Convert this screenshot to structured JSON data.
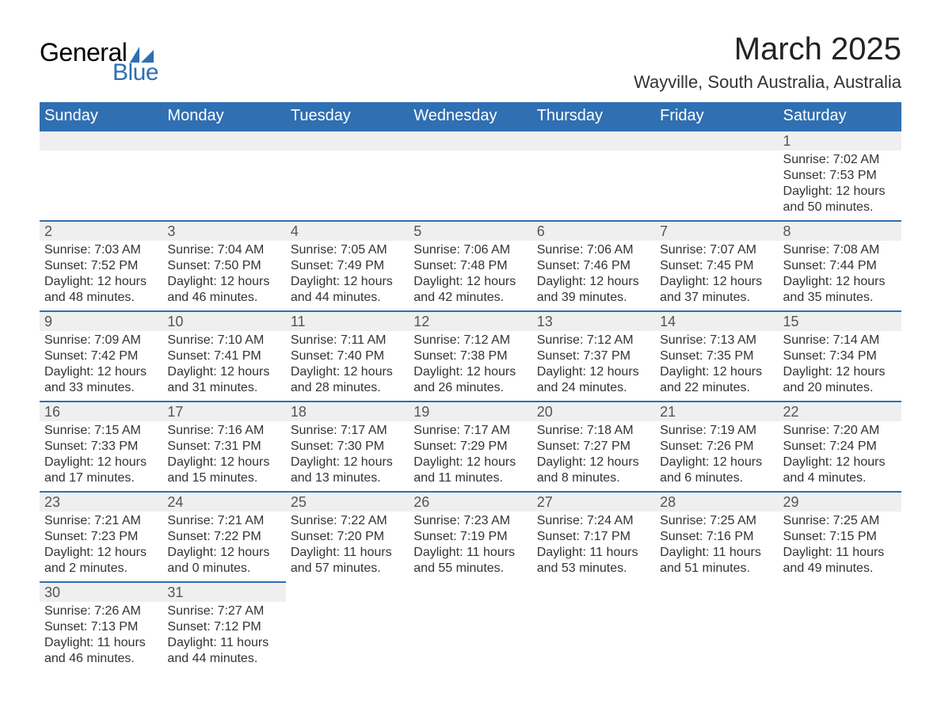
{
  "logo": {
    "text1": "General",
    "text2": "Blue",
    "sail_color": "#2f6fb2"
  },
  "title": "March 2025",
  "location": "Wayville, South Australia, Australia",
  "colors": {
    "header_bg": "#2f6fb2",
    "header_text": "#ffffff",
    "daynum_bg": "#efefef",
    "row_border": "#2f6fb2",
    "body_text": "#333333"
  },
  "day_headers": [
    "Sunday",
    "Monday",
    "Tuesday",
    "Wednesday",
    "Thursday",
    "Friday",
    "Saturday"
  ],
  "weeks": [
    [
      null,
      null,
      null,
      null,
      null,
      null,
      {
        "n": "1",
        "sunrise": "7:02 AM",
        "sunset": "7:53 PM",
        "daylight": "12 hours and 50 minutes."
      }
    ],
    [
      {
        "n": "2",
        "sunrise": "7:03 AM",
        "sunset": "7:52 PM",
        "daylight": "12 hours and 48 minutes."
      },
      {
        "n": "3",
        "sunrise": "7:04 AM",
        "sunset": "7:50 PM",
        "daylight": "12 hours and 46 minutes."
      },
      {
        "n": "4",
        "sunrise": "7:05 AM",
        "sunset": "7:49 PM",
        "daylight": "12 hours and 44 minutes."
      },
      {
        "n": "5",
        "sunrise": "7:06 AM",
        "sunset": "7:48 PM",
        "daylight": "12 hours and 42 minutes."
      },
      {
        "n": "6",
        "sunrise": "7:06 AM",
        "sunset": "7:46 PM",
        "daylight": "12 hours and 39 minutes."
      },
      {
        "n": "7",
        "sunrise": "7:07 AM",
        "sunset": "7:45 PM",
        "daylight": "12 hours and 37 minutes."
      },
      {
        "n": "8",
        "sunrise": "7:08 AM",
        "sunset": "7:44 PM",
        "daylight": "12 hours and 35 minutes."
      }
    ],
    [
      {
        "n": "9",
        "sunrise": "7:09 AM",
        "sunset": "7:42 PM",
        "daylight": "12 hours and 33 minutes."
      },
      {
        "n": "10",
        "sunrise": "7:10 AM",
        "sunset": "7:41 PM",
        "daylight": "12 hours and 31 minutes."
      },
      {
        "n": "11",
        "sunrise": "7:11 AM",
        "sunset": "7:40 PM",
        "daylight": "12 hours and 28 minutes."
      },
      {
        "n": "12",
        "sunrise": "7:12 AM",
        "sunset": "7:38 PM",
        "daylight": "12 hours and 26 minutes."
      },
      {
        "n": "13",
        "sunrise": "7:12 AM",
        "sunset": "7:37 PM",
        "daylight": "12 hours and 24 minutes."
      },
      {
        "n": "14",
        "sunrise": "7:13 AM",
        "sunset": "7:35 PM",
        "daylight": "12 hours and 22 minutes."
      },
      {
        "n": "15",
        "sunrise": "7:14 AM",
        "sunset": "7:34 PM",
        "daylight": "12 hours and 20 minutes."
      }
    ],
    [
      {
        "n": "16",
        "sunrise": "7:15 AM",
        "sunset": "7:33 PM",
        "daylight": "12 hours and 17 minutes."
      },
      {
        "n": "17",
        "sunrise": "7:16 AM",
        "sunset": "7:31 PM",
        "daylight": "12 hours and 15 minutes."
      },
      {
        "n": "18",
        "sunrise": "7:17 AM",
        "sunset": "7:30 PM",
        "daylight": "12 hours and 13 minutes."
      },
      {
        "n": "19",
        "sunrise": "7:17 AM",
        "sunset": "7:29 PM",
        "daylight": "12 hours and 11 minutes."
      },
      {
        "n": "20",
        "sunrise": "7:18 AM",
        "sunset": "7:27 PM",
        "daylight": "12 hours and 8 minutes."
      },
      {
        "n": "21",
        "sunrise": "7:19 AM",
        "sunset": "7:26 PM",
        "daylight": "12 hours and 6 minutes."
      },
      {
        "n": "22",
        "sunrise": "7:20 AM",
        "sunset": "7:24 PM",
        "daylight": "12 hours and 4 minutes."
      }
    ],
    [
      {
        "n": "23",
        "sunrise": "7:21 AM",
        "sunset": "7:23 PM",
        "daylight": "12 hours and 2 minutes."
      },
      {
        "n": "24",
        "sunrise": "7:21 AM",
        "sunset": "7:22 PM",
        "daylight": "12 hours and 0 minutes."
      },
      {
        "n": "25",
        "sunrise": "7:22 AM",
        "sunset": "7:20 PM",
        "daylight": "11 hours and 57 minutes."
      },
      {
        "n": "26",
        "sunrise": "7:23 AM",
        "sunset": "7:19 PM",
        "daylight": "11 hours and 55 minutes."
      },
      {
        "n": "27",
        "sunrise": "7:24 AM",
        "sunset": "7:17 PM",
        "daylight": "11 hours and 53 minutes."
      },
      {
        "n": "28",
        "sunrise": "7:25 AM",
        "sunset": "7:16 PM",
        "daylight": "11 hours and 51 minutes."
      },
      {
        "n": "29",
        "sunrise": "7:25 AM",
        "sunset": "7:15 PM",
        "daylight": "11 hours and 49 minutes."
      }
    ],
    [
      {
        "n": "30",
        "sunrise": "7:26 AM",
        "sunset": "7:13 PM",
        "daylight": "11 hours and 46 minutes."
      },
      {
        "n": "31",
        "sunrise": "7:27 AM",
        "sunset": "7:12 PM",
        "daylight": "11 hours and 44 minutes."
      },
      null,
      null,
      null,
      null,
      null
    ]
  ],
  "labels": {
    "sunrise": "Sunrise: ",
    "sunset": "Sunset: ",
    "daylight": "Daylight: "
  }
}
